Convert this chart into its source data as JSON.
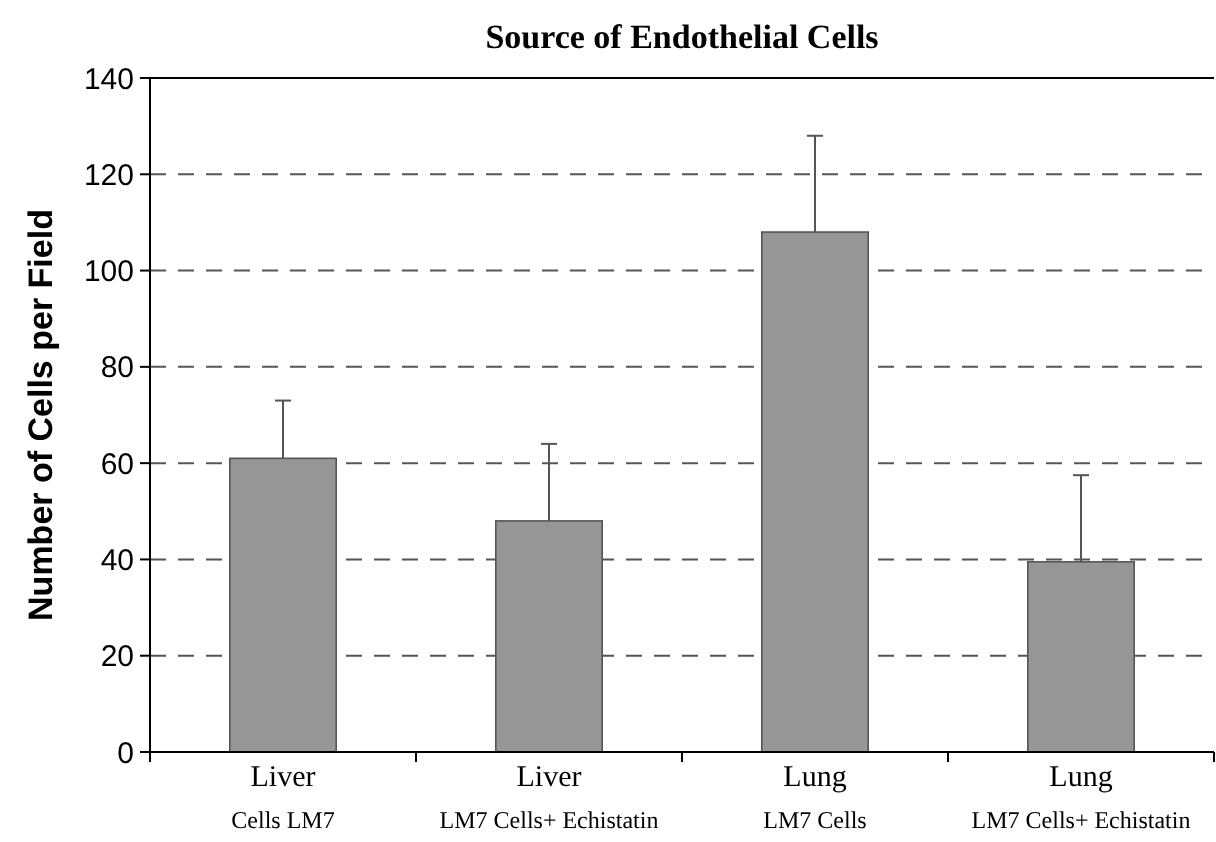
{
  "chart_data": {
    "type": "bar",
    "title": "Source of Endothelial Cells",
    "ylabel": "Number of Cells per Field",
    "categories": [
      "Liver\nCells LM7",
      "Liver\nLM7 Cells+ Echistatin",
      "Lung\nLM7 Cells",
      "Lung\nLM7 Cells+ Echistatin"
    ],
    "values": [
      61,
      48,
      108,
      39.5
    ],
    "errors": [
      [
        61,
        73
      ],
      [
        48,
        64
      ],
      [
        108,
        128
      ],
      [
        39.5,
        57.5
      ]
    ],
    "color": "#969696",
    "ylim": [
      0,
      140
    ],
    "yticks": [
      0,
      20,
      40,
      60,
      80,
      100,
      120,
      140
    ],
    "grid": "y"
  }
}
